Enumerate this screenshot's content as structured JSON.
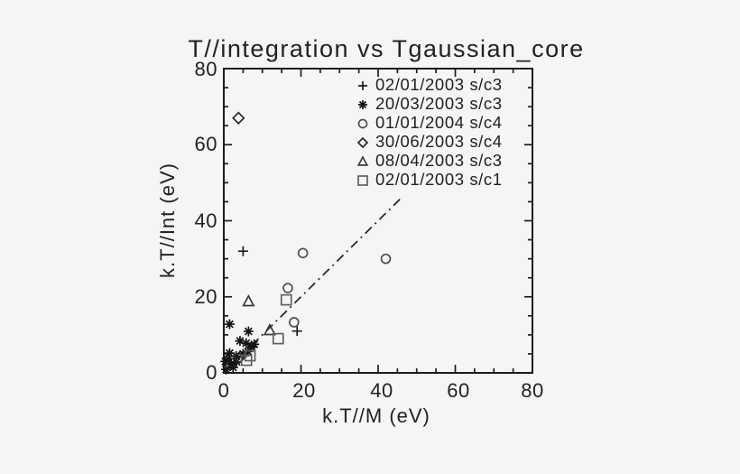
{
  "title": "T//integration vs Tgaussian_core",
  "colors": {
    "ink": "#1c1c1c",
    "background": "#f5f5f3",
    "plus": "#1d1d1d",
    "asterisk": "#131313",
    "circle": "#4f4f4f",
    "diamond": "#2a2a2a",
    "triangle": "#3a3a3a",
    "square": "#606060",
    "reference_line": "#2a2a2a"
  },
  "chart_data": {
    "type": "scatter",
    "title": "T//integration vs Tgaussian_core",
    "xlabel": "k.T//M (eV)",
    "ylabel": "k.T//Int (eV)",
    "xlim": [
      0,
      80
    ],
    "ylim": [
      0,
      80
    ],
    "x_ticks": [
      0,
      20,
      40,
      60,
      80
    ],
    "y_ticks": [
      0,
      20,
      40,
      60,
      80
    ],
    "minor_tick_interval": 5,
    "grid": false,
    "legend_position": "upper right inside",
    "series": [
      {
        "name": "02/01/2003 s/c3",
        "symbol": "plus",
        "points": [
          [
            5.0,
            32.0
          ],
          [
            19.0,
            11.0
          ]
        ]
      },
      {
        "name": "20/03/2003 s/c3",
        "symbol": "asterisk",
        "points": [
          [
            1.5,
            12.8
          ],
          [
            6.4,
            10.9
          ],
          [
            4.2,
            8.4
          ],
          [
            5.8,
            7.8
          ],
          [
            7.2,
            6.8
          ],
          [
            7.9,
            7.5
          ],
          [
            6.3,
            5.6
          ],
          [
            5.0,
            5.0
          ],
          [
            3.2,
            4.4
          ],
          [
            1.5,
            5.2
          ],
          [
            1.3,
            3.7
          ],
          [
            0.4,
            3.0
          ],
          [
            1.9,
            2.4
          ],
          [
            3.3,
            2.9
          ],
          [
            0.6,
            0.9
          ],
          [
            2.4,
            1.4
          ]
        ]
      },
      {
        "name": "01/01/2004 s/c4",
        "symbol": "circle",
        "points": [
          [
            20.5,
            31.5
          ],
          [
            42.0,
            30.0
          ],
          [
            16.6,
            22.3
          ],
          [
            18.2,
            13.3
          ]
        ]
      },
      {
        "name": "30/06/2003 s/c4",
        "symbol": "diamond",
        "points": [
          [
            3.8,
            67.0
          ],
          [
            4.0,
            4.0
          ]
        ]
      },
      {
        "name": "08/04/2003 s/c3",
        "symbol": "triangle",
        "points": [
          [
            6.4,
            18.8
          ],
          [
            11.9,
            11.2
          ]
        ]
      },
      {
        "name": "02/01/2003 s/c1",
        "symbol": "square",
        "points": [
          [
            16.2,
            19.2
          ],
          [
            14.1,
            9.0
          ],
          [
            5.9,
            3.3
          ],
          [
            6.8,
            4.5
          ]
        ]
      }
    ],
    "reference_line": {
      "style": "dash-dot",
      "x": [
        0,
        46.3
      ],
      "y": [
        0,
        46.3
      ],
      "description": "identity line y = x"
    }
  }
}
